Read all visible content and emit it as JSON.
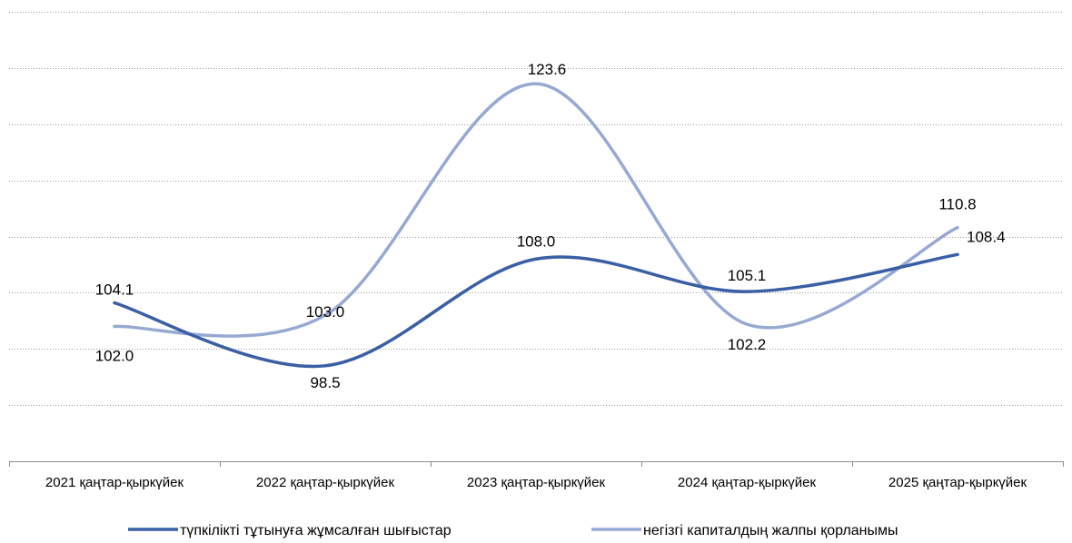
{
  "chart_data": {
    "type": "line",
    "smooth": true,
    "title": "",
    "xlabel": "",
    "ylabel": "",
    "ylim": [
      90,
      130
    ],
    "y_gridlines": [
      95,
      100,
      105,
      110,
      115,
      120,
      125,
      130
    ],
    "grid": true,
    "y_tick_labels_shown": false,
    "legend_position": "bottom",
    "categories": [
      "2021 қаңтар-қыркүйек",
      "2022 қаңтар-қыркүйек",
      "2023 қаңтар-қыркүйек",
      "2024 қаңтар-қыркүйек",
      "2025 қаңтар-қыркүйек"
    ],
    "series": [
      {
        "name": "түпкілікті тұтынуға жұмсалған шығыстар",
        "color": "#3a5fa5",
        "values": [
          104.1,
          98.5,
          108.0,
          105.1,
          108.4
        ],
        "labels": [
          "104.1",
          "98.5",
          "108.0",
          "105.1",
          "108.4"
        ]
      },
      {
        "name": "негізгі капиталдың жалпы қорланымы",
        "color": "#97a9d3",
        "values": [
          102.0,
          103.0,
          123.6,
          102.2,
          110.8
        ],
        "labels": [
          "102.0",
          "103.0",
          "123.6",
          "102.2",
          "110.8"
        ]
      }
    ]
  }
}
